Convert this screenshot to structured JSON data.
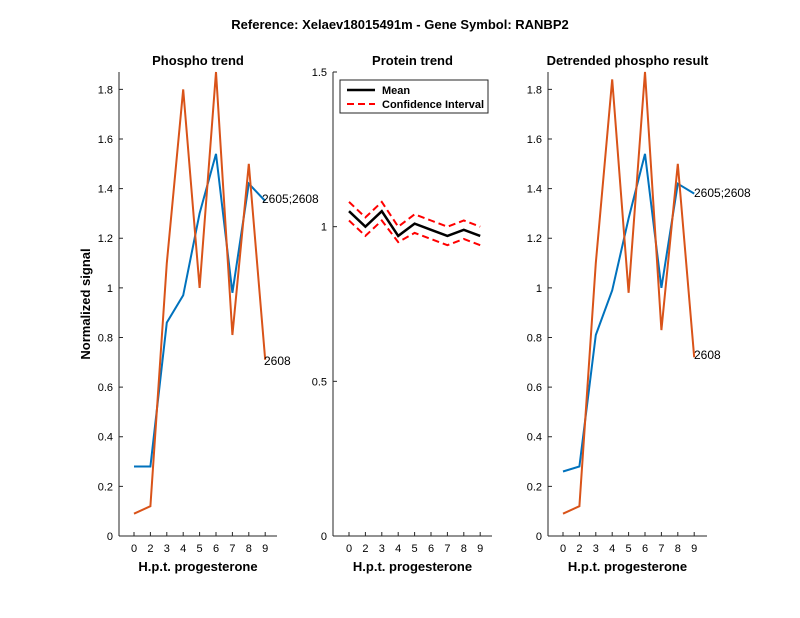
{
  "figure": {
    "title": "Reference:  Xelaev18015491m - Gene Symbol:  RANBP2"
  },
  "colors": {
    "blue": "#0072BD",
    "orange": "#D95319",
    "mean": "#000000",
    "ci": "#FF0000",
    "axis": "#262626"
  },
  "chart_data": [
    {
      "type": "line",
      "title": "Phospho trend",
      "xlabel": "H.p.t. progesterone",
      "ylabel": "Normalized signal",
      "categories": [
        "0",
        "2",
        "3",
        "4",
        "5",
        "6",
        "7",
        "8",
        "9"
      ],
      "ylim": [
        0,
        1.87
      ],
      "yticks": [
        0,
        0.2,
        0.4,
        0.6,
        0.8,
        1,
        1.2,
        1.4,
        1.6,
        1.8
      ],
      "ytick_labels": [
        "0",
        "0.2",
        "0.4",
        "0.6",
        "0.8",
        "1",
        "1.2",
        "1.4",
        "1.6",
        "1.8"
      ],
      "series": [
        {
          "name": "2605;2608",
          "color": "blue",
          "values": [
            0.28,
            0.28,
            0.86,
            0.97,
            1.3,
            1.54,
            0.98,
            1.42,
            1.35
          ]
        },
        {
          "name": "2608",
          "color": "orange",
          "values": [
            0.09,
            0.12,
            1.1,
            1.8,
            1.0,
            1.87,
            0.81,
            1.5,
            0.71
          ]
        }
      ],
      "annotations": [
        "2605;2608",
        "2608"
      ]
    },
    {
      "type": "line",
      "title": "Protein trend",
      "xlabel": "H.p.t. progesterone",
      "ylabel": "",
      "categories": [
        "0",
        "2",
        "3",
        "4",
        "5",
        "6",
        "7",
        "8",
        "9"
      ],
      "ylim": [
        0,
        1.5
      ],
      "yticks": [
        0,
        0.5,
        1,
        1.5
      ],
      "ytick_labels": [
        "0",
        "0.5",
        "1",
        "1.5"
      ],
      "series": [
        {
          "name": "Mean",
          "color": "mean",
          "style": "solid",
          "values": [
            1.05,
            1.0,
            1.05,
            0.97,
            1.01,
            0.99,
            0.97,
            0.99,
            0.97
          ]
        },
        {
          "name": "Confidence Interval",
          "color": "ci",
          "style": "dashed",
          "values": [
            1.08,
            1.03,
            1.08,
            1.0,
            1.04,
            1.02,
            1.0,
            1.02,
            1.0
          ]
        },
        {
          "name": "Confidence Interval",
          "color": "ci",
          "style": "dashed",
          "values": [
            1.02,
            0.97,
            1.02,
            0.95,
            0.98,
            0.96,
            0.94,
            0.96,
            0.94
          ]
        }
      ],
      "legend": {
        "position": "top-left",
        "entries": [
          "Mean",
          "Confidence Interval"
        ]
      }
    },
    {
      "type": "line",
      "title": "Detrended phospho result",
      "xlabel": "H.p.t. progesterone",
      "ylabel": "",
      "categories": [
        "0",
        "2",
        "3",
        "4",
        "5",
        "6",
        "7",
        "8",
        "9"
      ],
      "ylim": [
        0,
        1.87
      ],
      "yticks": [
        0,
        0.2,
        0.4,
        0.6,
        0.8,
        1,
        1.2,
        1.4,
        1.6,
        1.8
      ],
      "ytick_labels": [
        "0",
        "0.2",
        "0.4",
        "0.6",
        "0.8",
        "1",
        "1.2",
        "1.4",
        "1.6",
        "1.8"
      ],
      "series": [
        {
          "name": "2605;2608",
          "color": "blue",
          "values": [
            0.26,
            0.28,
            0.81,
            0.99,
            1.28,
            1.54,
            1.0,
            1.42,
            1.38
          ]
        },
        {
          "name": "2608",
          "color": "orange",
          "values": [
            0.09,
            0.12,
            1.1,
            1.84,
            0.98,
            1.87,
            0.83,
            1.5,
            0.72
          ]
        }
      ],
      "annotations": [
        "2605;2608",
        "2608"
      ]
    }
  ]
}
